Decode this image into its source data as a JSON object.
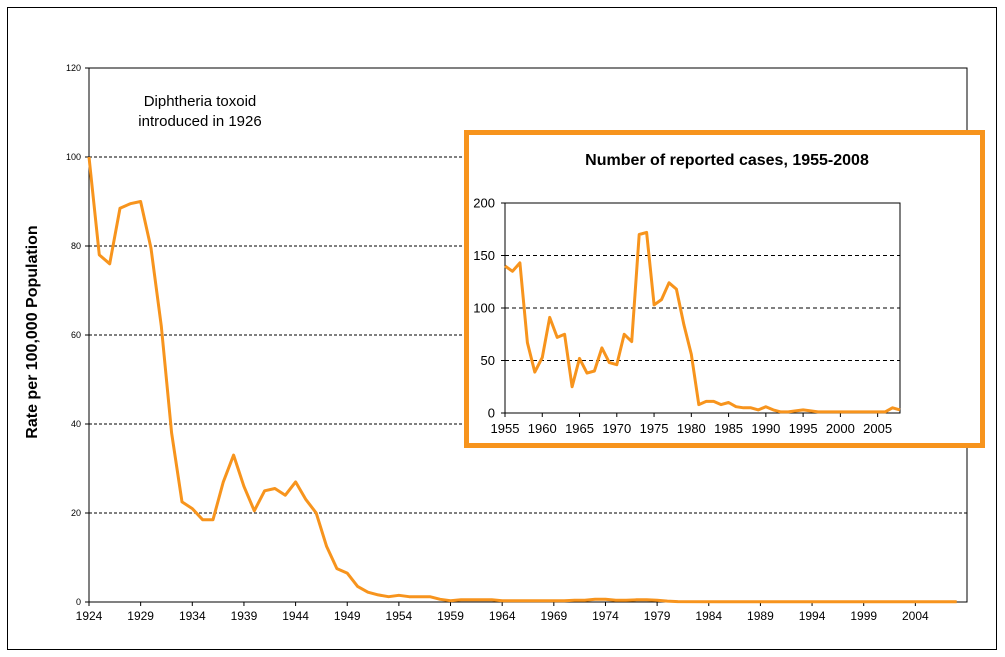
{
  "chart_data": [
    {
      "type": "line",
      "title": "",
      "ylabel": "Rate per 100,000 Population",
      "xlabel": "",
      "xlim": [
        1924,
        2009
      ],
      "ylim": [
        0,
        120
      ],
      "x_ticks": [
        1924,
        1929,
        1934,
        1939,
        1944,
        1949,
        1954,
        1959,
        1964,
        1969,
        1974,
        1979,
        1984,
        1989,
        1994,
        1999,
        2004
      ],
      "y_ticks": [
        0,
        20,
        40,
        60,
        80,
        100,
        120
      ],
      "grid": "horizontal dashed",
      "annotation": [
        "Diphtheria toxoid",
        "introduced in 1926"
      ],
      "series": [
        {
          "name": "Rate per 100,000 Population",
          "color": "#F7941D",
          "x": [
            1924,
            1925,
            1926,
            1927,
            1928,
            1929,
            1930,
            1931,
            1932,
            1933,
            1934,
            1935,
            1936,
            1937,
            1938,
            1939,
            1940,
            1941,
            1942,
            1943,
            1944,
            1945,
            1946,
            1947,
            1948,
            1949,
            1950,
            1951,
            1952,
            1953,
            1954,
            1955,
            1956,
            1957,
            1958,
            1959,
            1960,
            1961,
            1962,
            1963,
            1964,
            1965,
            1966,
            1967,
            1968,
            1969,
            1970,
            1971,
            1972,
            1973,
            1974,
            1975,
            1976,
            1977,
            1978,
            1979,
            1980,
            1981,
            1985,
            1990,
            1995,
            2000,
            2005,
            2008
          ],
          "values": [
            100,
            78,
            76,
            88.5,
            89.5,
            90,
            79.5,
            62,
            38,
            22.5,
            21,
            18.5,
            18.5,
            27,
            33,
            26,
            20.5,
            25,
            25.5,
            24,
            27,
            23,
            20,
            12.5,
            7.5,
            6.5,
            3.5,
            2.2,
            1.6,
            1.2,
            1.5,
            1.2,
            1.2,
            1.2,
            0.6,
            0.3,
            0.5,
            0.5,
            0.5,
            0.5,
            0.3,
            0.3,
            0.3,
            0.3,
            0.3,
            0.3,
            0.3,
            0.4,
            0.4,
            0.6,
            0.6,
            0.4,
            0.4,
            0.5,
            0.5,
            0.4,
            0.2,
            0.1,
            0.05,
            0.05,
            0.05,
            0.05,
            0.05,
            0.05
          ]
        }
      ]
    },
    {
      "type": "line",
      "title": "Number of reported cases, 1955-2008",
      "xlabel": "",
      "ylabel": "",
      "xlim": [
        1955,
        2008
      ],
      "ylim": [
        0,
        200
      ],
      "x_ticks": [
        1955,
        1960,
        1965,
        1970,
        1975,
        1980,
        1985,
        1990,
        1995,
        2000,
        2005
      ],
      "y_ticks": [
        0,
        50,
        100,
        150,
        200
      ],
      "grid": "horizontal dashed",
      "series": [
        {
          "name": "Number of reported cases",
          "color": "#F7941D",
          "x": [
            1955,
            1956,
            1957,
            1958,
            1959,
            1960,
            1961,
            1962,
            1963,
            1964,
            1965,
            1966,
            1967,
            1968,
            1969,
            1970,
            1971,
            1972,
            1973,
            1974,
            1975,
            1976,
            1977,
            1978,
            1979,
            1980,
            1981,
            1982,
            1983,
            1984,
            1985,
            1986,
            1987,
            1988,
            1989,
            1990,
            1991,
            1992,
            1993,
            1994,
            1995,
            1996,
            1997,
            1998,
            1999,
            2000,
            2001,
            2002,
            2003,
            2004,
            2005,
            2006,
            2007,
            2008
          ],
          "values": [
            140,
            135,
            143,
            67,
            39,
            53,
            91,
            72,
            75,
            25,
            52,
            38,
            40,
            62,
            48,
            46,
            75,
            68,
            170,
            172,
            103,
            108,
            124,
            118,
            84,
            56,
            8,
            11,
            11,
            8,
            10,
            6,
            5,
            5,
            3,
            6,
            3,
            1,
            1,
            2,
            3,
            2,
            1,
            1,
            1,
            1,
            1,
            1,
            1,
            1,
            1,
            1,
            5,
            3
          ]
        }
      ]
    }
  ]
}
